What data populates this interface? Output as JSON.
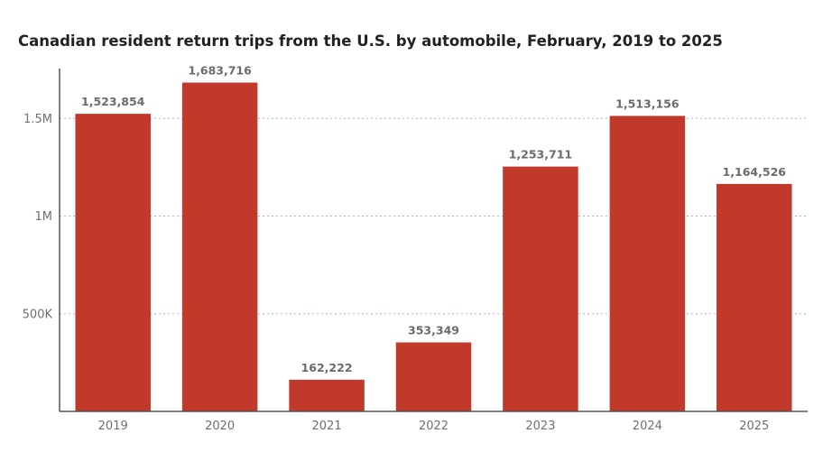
{
  "chart_data": {
    "type": "bar",
    "title": "Canadian resident return trips from the U.S. by automobile, February, 2019 to 2025",
    "xlabel": "",
    "ylabel": "",
    "categories": [
      "2019",
      "2020",
      "2021",
      "2022",
      "2023",
      "2024",
      "2025"
    ],
    "values": [
      1523854,
      1683716,
      162222,
      353349,
      1253711,
      1513156,
      1164526
    ],
    "value_labels": [
      "1,523,854",
      "1,683,716",
      "162,222",
      "353,349",
      "1,253,711",
      "1,513,156",
      "1,164,526"
    ],
    "y_ticks": [
      500000,
      1000000,
      1500000
    ],
    "y_tick_labels": [
      "500K",
      "1M",
      "1.5M"
    ],
    "ylim": [
      0,
      1700000
    ],
    "grid": true,
    "bar_color": "#c0392b"
  }
}
